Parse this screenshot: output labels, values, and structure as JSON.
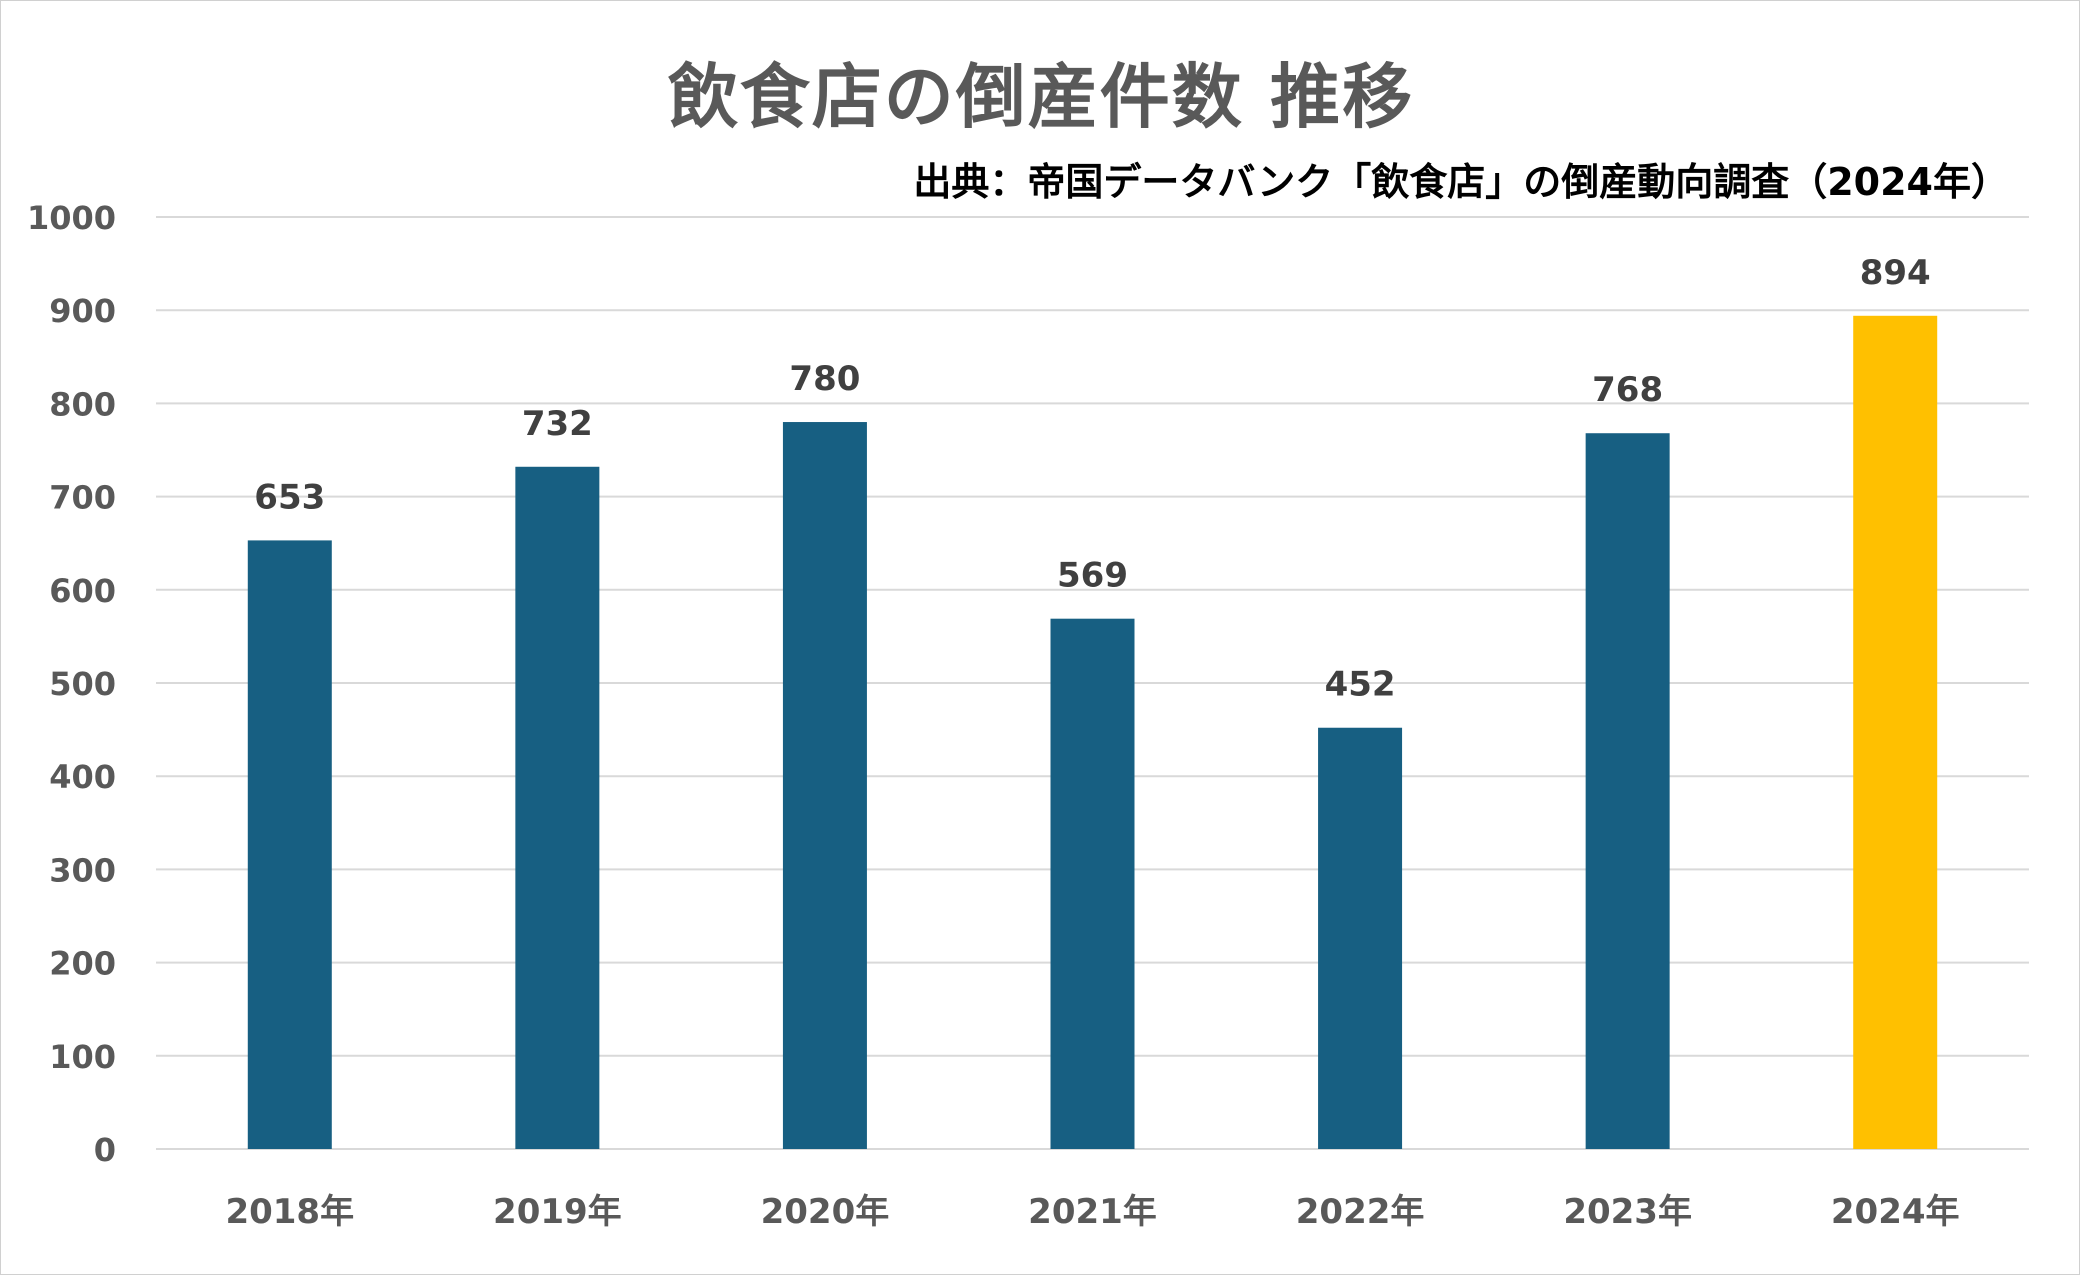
{
  "chart_data": {
    "type": "bar",
    "title": "飲食店の倒産件数 推移",
    "subtitle": "出典：帝国データバンク「飲食店」の倒産動向調査（2024年）",
    "categories": [
      "2018年",
      "2019年",
      "2020年",
      "2021年",
      "2022年",
      "2023年",
      "2024年"
    ],
    "values": [
      653,
      732,
      780,
      569,
      452,
      768,
      894
    ],
    "ylim": [
      0,
      1000
    ],
    "yticks": [
      "0",
      "100",
      "200",
      "300",
      "400",
      "500",
      "600",
      "700",
      "800",
      "900",
      "1000"
    ],
    "grid": true,
    "data_labels": true,
    "colors": {
      "bar": "#175F82",
      "highlight": "#FFC000",
      "grid": "#D9D9D9",
      "axis_text": "#595959",
      "label_text": "#404040"
    },
    "highlight_index": 6
  }
}
